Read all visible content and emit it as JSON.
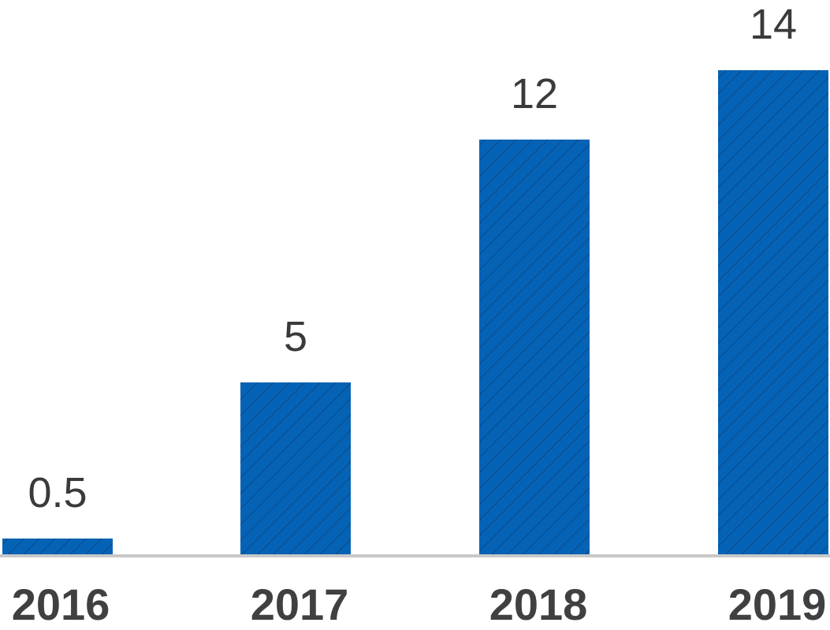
{
  "chart_data": {
    "type": "bar",
    "categories": [
      "2016",
      "2017",
      "2018",
      "2019"
    ],
    "values": [
      0.5,
      5,
      12,
      14
    ],
    "value_labels": [
      "0.5",
      "5",
      "12",
      "14"
    ],
    "title": "",
    "xlabel": "",
    "ylabel": "",
    "ylim": [
      0,
      14
    ],
    "grid": false,
    "legend": "none",
    "bar_color": "#0563B5",
    "hatch_color": "#0a3f73",
    "axis_color": "#c8c8c8"
  }
}
